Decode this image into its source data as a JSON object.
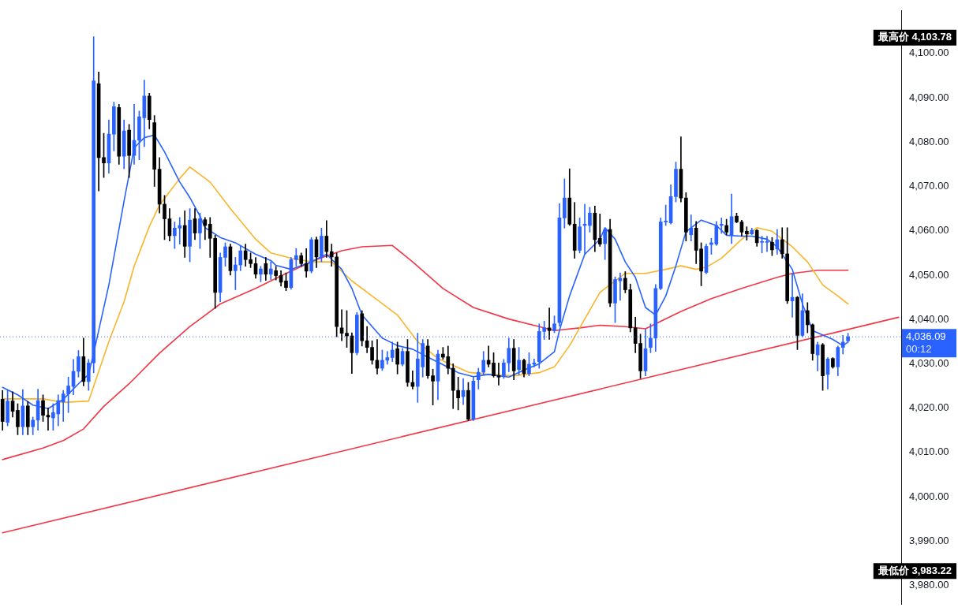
{
  "chart_data": {
    "type": "candlestick",
    "categories": [
      null,
      null,
      null,
      null,
      null,
      null,
      null,
      null,
      null,
      null,
      null,
      null,
      null,
      null,
      null,
      null,
      null,
      null,
      null,
      null,
      null,
      null,
      null,
      null,
      null,
      null,
      null,
      null,
      null,
      null,
      null,
      null,
      null,
      null,
      null,
      null,
      null,
      null,
      null,
      null,
      null,
      null,
      null,
      null,
      null,
      null,
      null,
      null,
      null,
      null,
      null,
      null,
      null,
      null,
      null,
      null,
      null,
      null,
      null,
      null,
      null,
      null,
      null,
      null,
      null,
      null,
      null,
      null,
      null,
      null,
      null,
      null,
      null,
      null,
      null,
      null,
      null,
      null,
      null,
      null,
      null,
      null,
      null,
      null,
      null,
      null,
      null,
      null,
      null,
      null,
      null,
      null,
      null,
      null,
      null,
      null,
      null,
      null,
      null,
      null,
      null,
      null,
      null,
      null,
      null,
      null,
      null,
      null,
      null,
      null,
      null,
      null,
      null,
      null,
      null,
      null,
      null,
      null,
      null,
      null,
      null,
      null,
      null,
      null,
      null,
      null,
      null,
      null,
      null,
      null,
      null,
      null,
      null,
      null,
      null,
      null,
      null,
      null,
      null,
      null,
      null,
      null,
      null,
      null,
      null,
      null,
      null,
      null,
      null,
      null,
      null,
      null,
      null,
      null,
      null,
      null,
      null,
      null,
      null,
      null,
      null,
      null,
      null,
      null,
      null,
      null,
      null,
      null,
      null,
      null,
      null,
      null,
      null,
      null,
      null,
      null,
      null,
      null
    ],
    "ohlc": [
      [
        4022,
        4024,
        4015,
        4017
      ],
      [
        4016.8,
        4024,
        4016,
        4021.6
      ],
      [
        4021.6,
        4023.7,
        4018,
        4019.3
      ],
      [
        4019.5,
        4021,
        4014,
        4015.8
      ],
      [
        4015.8,
        4024.2,
        4014,
        4020.5
      ],
      [
        4020.5,
        4021.5,
        4014,
        4015.8
      ],
      [
        4015.8,
        4018,
        4014,
        4017.3
      ],
      [
        4017.3,
        4024.3,
        4015,
        4021.7
      ],
      [
        4021.7,
        4023,
        4017,
        4018.4
      ],
      [
        4018.4,
        4020,
        4015,
        4018
      ],
      [
        4017.8,
        4021,
        4015,
        4019
      ],
      [
        4018.7,
        4023,
        4016,
        4021.7
      ],
      [
        4021.4,
        4024,
        4017,
        4023.2
      ],
      [
        4023.2,
        4027,
        4019,
        4025
      ],
      [
        4024.9,
        4031,
        4023,
        4028.3
      ],
      [
        4028.3,
        4033,
        4027,
        4031.6
      ],
      [
        4031.6,
        4035.8,
        4025,
        4026
      ],
      [
        4026,
        4031,
        4024,
        4030.2
      ],
      [
        4030.2,
        4103.78,
        4028,
        4093.8
      ],
      [
        4093.2,
        4095.8,
        4069,
        4076.5
      ],
      [
        4076.5,
        4082,
        4072,
        4075.3
      ],
      [
        4075.3,
        4085,
        4073,
        4081.8
      ],
      [
        4081.8,
        4089,
        4078,
        4088
      ],
      [
        4087.8,
        4088.5,
        4075,
        4076.8
      ],
      [
        4076.8,
        4085,
        4074,
        4082.5
      ],
      [
        4082.7,
        4084,
        4072,
        4077
      ],
      [
        4077,
        4088.5,
        4075,
        4080.4
      ],
      [
        4080.4,
        4087,
        4076,
        4085.7
      ],
      [
        4085.5,
        4094,
        4079,
        4090.4
      ],
      [
        4090.4,
        4091,
        4083,
        4085.1
      ],
      [
        4084.4,
        4086,
        4070,
        4073.9
      ],
      [
        4073.9,
        4076.5,
        4064,
        4066
      ],
      [
        4066,
        4068,
        4058,
        4062.7
      ],
      [
        4062.7,
        4065,
        4057.7,
        4058.9
      ],
      [
        4058.9,
        4062,
        4056,
        4060.6
      ],
      [
        4060.6,
        4063,
        4057,
        4061.2
      ],
      [
        4061.2,
        4064.5,
        4054,
        4056.5
      ],
      [
        4056.5,
        4065,
        4053,
        4062.4
      ],
      [
        4062.7,
        4065,
        4058,
        4059.5
      ],
      [
        4059.5,
        4064,
        4056,
        4062.7
      ],
      [
        4062.5,
        4063,
        4058,
        4061.2
      ],
      [
        4061.5,
        4063,
        4054,
        4058.3
      ],
      [
        4058.3,
        4059,
        4042.5,
        4046.1
      ],
      [
        4046.1,
        4055,
        4044,
        4054
      ],
      [
        4054,
        4057.3,
        4052,
        4056.4
      ],
      [
        4056.4,
        4057,
        4050,
        4051
      ],
      [
        4051,
        4054,
        4046.7,
        4052.3
      ],
      [
        4052.3,
        4056.7,
        4051,
        4055.5
      ],
      [
        4055.5,
        4057,
        4052,
        4053.5
      ],
      [
        4053.5,
        4055,
        4051.7,
        4052.6
      ],
      [
        4052.6,
        4054,
        4049.3,
        4050.2
      ],
      [
        4050.2,
        4052,
        4048.5,
        4051.4
      ],
      [
        4052.6,
        4054,
        4048.8,
        4050.2
      ],
      [
        4050.2,
        4053,
        4049,
        4051.4
      ],
      [
        4051,
        4052,
        4048.9,
        4049.9
      ],
      [
        4049.9,
        4051,
        4047.5,
        4048.4
      ],
      [
        4048.7,
        4050.5,
        4046.5,
        4047.2
      ],
      [
        4047.2,
        4054,
        4046.8,
        4053.5
      ],
      [
        4053.5,
        4056,
        4052,
        4054.4
      ],
      [
        4054.4,
        4055,
        4052,
        4052.6
      ],
      [
        4052.6,
        4056,
        4049.5,
        4050.9
      ],
      [
        4050.9,
        4058.5,
        4050.5,
        4058
      ],
      [
        4058,
        4058.6,
        4051.7,
        4054.1
      ],
      [
        4054.1,
        4060.6,
        4053,
        4058.8
      ],
      [
        4058.8,
        4062.3,
        4054,
        4055.3
      ],
      [
        4055.3,
        4057,
        4052,
        4054.1
      ],
      [
        4054.1,
        4055,
        4036.1,
        4038.4
      ],
      [
        4038.1,
        4042.2,
        4035.2,
        4036.9
      ],
      [
        4036.9,
        4042,
        4033.7,
        4036.3
      ],
      [
        4036.3,
        4037,
        4027.8,
        4032.5
      ],
      [
        4032.5,
        4041.6,
        4032,
        4041
      ],
      [
        4041.3,
        4042,
        4034,
        4035.2
      ],
      [
        4035.2,
        4038.4,
        4032.5,
        4033.7
      ],
      [
        4033.7,
        4035.2,
        4029.9,
        4030.8
      ],
      [
        4030.8,
        4035.5,
        4027.7,
        4029
      ],
      [
        4029,
        4033.1,
        4028.5,
        4030.8
      ],
      [
        4030.8,
        4032.8,
        4029.9,
        4031.4
      ],
      [
        4031.4,
        4034.9,
        4030.5,
        4033.1
      ],
      [
        4033.4,
        4034.9,
        4027.7,
        4029.9
      ],
      [
        4029.9,
        4033.5,
        4029.5,
        4032.8
      ],
      [
        4032.8,
        4035.5,
        4024.9,
        4025.8
      ],
      [
        4025.8,
        4028.4,
        4024.3,
        4024.9
      ],
      [
        4024.9,
        4036.9,
        4021.3,
        4031.1
      ],
      [
        4029.3,
        4035.5,
        4027,
        4034.6
      ],
      [
        4034,
        4035.5,
        4026.7,
        4027.3
      ],
      [
        4027.3,
        4028.8,
        4020.7,
        4026.1
      ],
      [
        4026.1,
        4033.1,
        4021.9,
        4032.2
      ],
      [
        4032.2,
        4033.7,
        4031,
        4031.5
      ],
      [
        4031.6,
        4034,
        4027.7,
        4029
      ],
      [
        4029,
        4030,
        4019.9,
        4024
      ],
      [
        4024,
        4027,
        4019.6,
        4022.3
      ],
      [
        4022.6,
        4026.7,
        4020.8,
        4024
      ],
      [
        4024,
        4025.8,
        4017.2,
        4017.5
      ],
      [
        4017.5,
        4027,
        4017.2,
        4026.1
      ],
      [
        4026.4,
        4029,
        4024.3,
        4028.1
      ],
      [
        4028.1,
        4032.8,
        4027.5,
        4030.8
      ],
      [
        4030.8,
        4034,
        4029.3,
        4029.9
      ],
      [
        4030.2,
        4032.5,
        4027,
        4027.3
      ],
      [
        4027.3,
        4030.2,
        4025.2,
        4027
      ],
      [
        4027.3,
        4031,
        4026.7,
        4030.2
      ],
      [
        4030.2,
        4035.8,
        4028.2,
        4033.5
      ],
      [
        4033.5,
        4035.5,
        4026.4,
        4028.4
      ],
      [
        4028.7,
        4033.7,
        4027.5,
        4030.8
      ],
      [
        4030.8,
        4031.1,
        4027,
        4027.8
      ],
      [
        4027.8,
        4032.5,
        4027.3,
        4029.9
      ],
      [
        4029.9,
        4031.1,
        4029.3,
        4030.2
      ],
      [
        4030.5,
        4039,
        4029,
        4037.3
      ],
      [
        4037.3,
        4039.6,
        4035.5,
        4038.1
      ],
      [
        4038.1,
        4042.6,
        4035.5,
        4037.5
      ],
      [
        4037.5,
        4040.8,
        4037,
        4039
      ],
      [
        4039.3,
        4066.1,
        4038.5,
        4062.9
      ],
      [
        4062.9,
        4071.7,
        4060.6,
        4067.4
      ],
      [
        4067.4,
        4074,
        4061.2,
        4061.5
      ],
      [
        4061.5,
        4066.4,
        4053.8,
        4055.6
      ],
      [
        4055.6,
        4062.9,
        4055,
        4060.9
      ],
      [
        4061.2,
        4066,
        4054.7,
        4061.5
      ],
      [
        4061.2,
        4065.3,
        4059.7,
        4064
      ],
      [
        4064,
        4065.6,
        4055.3,
        4058
      ],
      [
        4058.3,
        4063.8,
        4056.5,
        4057
      ],
      [
        4057.1,
        4060.6,
        4053.5,
        4060.3
      ],
      [
        4060.3,
        4062.6,
        4042.9,
        4043.7
      ],
      [
        4043.7,
        4049.6,
        4039.3,
        4049
      ],
      [
        4048.7,
        4050.5,
        4044.3,
        4049.3
      ],
      [
        4049.3,
        4050.8,
        4046,
        4046.7
      ],
      [
        4046.7,
        4048,
        4037.2,
        4038.1
      ],
      [
        4038.1,
        4040.5,
        4032.5,
        4034.6
      ],
      [
        4034.6,
        4036.7,
        4026.7,
        4028.4
      ],
      [
        4028.4,
        4037.8,
        4027.3,
        4033.4
      ],
      [
        4033.7,
        4039,
        4032.5,
        4035.8
      ],
      [
        4035.8,
        4047.9,
        4032.8,
        4047
      ],
      [
        4047,
        4062.9,
        4046.7,
        4062
      ],
      [
        4062,
        4065.8,
        4061.2,
        4062.2
      ],
      [
        4061.8,
        4070.4,
        4061.5,
        4067.7
      ],
      [
        4067.7,
        4075.5,
        4066.5,
        4073.9
      ],
      [
        4073.9,
        4081.2,
        4066.5,
        4067.4
      ],
      [
        4067.4,
        4068.6,
        4057.7,
        4059.7
      ],
      [
        4059.1,
        4063.6,
        4057.7,
        4060.6
      ],
      [
        4060.6,
        4062.1,
        4052.6,
        4055.6
      ],
      [
        4055.9,
        4057.3,
        4047.6,
        4050.9
      ],
      [
        4050.6,
        4057,
        4050.3,
        4056.5
      ],
      [
        4056.9,
        4058.3,
        4054.7,
        4057.3
      ],
      [
        4057,
        4062.1,
        4056.7,
        4061.2
      ],
      [
        4061.2,
        4062.9,
        4059.4,
        4061.5
      ],
      [
        4061.2,
        4062.6,
        4059.1,
        4059.7
      ],
      [
        4059.1,
        4068.3,
        4057.1,
        4063.2
      ],
      [
        4063.3,
        4064,
        4061.8,
        4062
      ],
      [
        4062,
        4062.4,
        4058.8,
        4059.7
      ],
      [
        4059.9,
        4060.9,
        4057.9,
        4059.3
      ],
      [
        4059.3,
        4060.6,
        4059.1,
        4060.1
      ],
      [
        4060.1,
        4060.3,
        4056.5,
        4057.3
      ],
      [
        4057.4,
        4058.8,
        4055,
        4057.6
      ],
      [
        4057.4,
        4058.8,
        4055.3,
        4057.5
      ],
      [
        4057.4,
        4058.5,
        4054.4,
        4055.7
      ],
      [
        4055.9,
        4060.3,
        4054.7,
        4058
      ],
      [
        4058,
        4060.7,
        4053.8,
        4054.8
      ],
      [
        4054.8,
        4060.7,
        4043.6,
        4044.2
      ],
      [
        4044.2,
        4050.3,
        4040.5,
        4045
      ],
      [
        4045,
        4045.2,
        4033.2,
        4036.4
      ],
      [
        4036.4,
        4045.8,
        4036.1,
        4042
      ],
      [
        4042,
        4043.8,
        4037,
        4038.8
      ],
      [
        4038.8,
        4039,
        4030.8,
        4032.3
      ],
      [
        4032,
        4034.9,
        4028.4,
        4034.3
      ],
      [
        4034.3,
        4034.6,
        4024,
        4027.3
      ],
      [
        4027.6,
        4031.4,
        4024.3,
        4031.1
      ],
      [
        4031.2,
        4031.4,
        4029,
        4029.3
      ],
      [
        4029.3,
        4034,
        4027.3,
        4033.7
      ],
      [
        4033.7,
        4036.4,
        4032.2,
        4034.9
      ],
      [
        4035.2,
        4036.9,
        4034.9,
        4036.09
      ],
      null,
      null,
      null,
      null,
      null,
      null,
      null,
      null,
      null,
      null
    ],
    "colors": [
      "#000000",
      "#2962ff",
      "#000000",
      "#000000",
      "#2962ff",
      "#000000",
      "#2962ff",
      "#2962ff",
      "#000000",
      "#000000",
      "#2962ff",
      "#2962ff",
      "#2962ff",
      "#2962ff",
      "#2962ff",
      "#2962ff",
      "#000000",
      "#2962ff",
      "#2962ff",
      "#000000",
      "#000000",
      "#2962ff",
      "#2962ff",
      "#000000",
      "#2962ff",
      "#000000",
      "#2962ff",
      "#2962ff",
      "#2962ff",
      "#000000",
      "#000000",
      "#000000",
      "#000000",
      "#000000",
      "#2962ff",
      "#2962ff",
      "#000000",
      "#2962ff",
      "#000000",
      "#2962ff",
      "#000000",
      "#000000",
      "#000000",
      "#2962ff",
      "#2962ff",
      "#000000",
      "#2962ff",
      "#2962ff",
      "#000000",
      "#000000",
      "#000000",
      "#2962ff",
      "#000000",
      "#2962ff",
      "#000000",
      "#000000",
      "#000000",
      "#2962ff",
      "#2962ff",
      "#000000",
      "#000000",
      "#2962ff",
      "#000000",
      "#2962ff",
      "#000000",
      "#000000",
      "#000000",
      "#000000",
      "#000000",
      "#000000",
      "#2962ff",
      "#000000",
      "#000000",
      "#000000",
      "#000000",
      "#2962ff",
      "#2962ff",
      "#2962ff",
      "#000000",
      "#2962ff",
      "#000000",
      "#000000",
      "#2962ff",
      "#2962ff",
      "#000000",
      "#000000",
      "#2962ff",
      "#000000",
      "#000000",
      "#000000",
      "#000000",
      "#2962ff",
      "#000000",
      "#2962ff",
      "#2962ff",
      "#2962ff",
      "#000000",
      "#000000",
      "#000000",
      "#2962ff",
      "#2962ff",
      "#000000",
      "#2962ff",
      "#000000",
      "#2962ff",
      "#2962ff",
      "#2962ff",
      "#2962ff",
      "#000000",
      "#2962ff",
      "#2962ff",
      "#2962ff",
      "#000000",
      "#000000",
      "#2962ff",
      "#2962ff",
      "#2962ff",
      "#000000",
      "#000000",
      "#2962ff",
      "#000000",
      "#2962ff",
      "#2962ff",
      "#000000",
      "#000000",
      "#000000",
      "#000000",
      "#2962ff",
      "#2962ff",
      "#2962ff",
      "#2962ff",
      "#2962ff",
      "#2962ff",
      "#2962ff",
      "#000000",
      "#000000",
      "#2962ff",
      "#000000",
      "#000000",
      "#2962ff",
      "#2962ff",
      "#2962ff",
      "#2962ff",
      "#000000",
      "#2962ff",
      "#000000",
      "#000000",
      "#000000",
      "#2962ff",
      "#000000",
      "#2962ff",
      "#2962ff",
      "#000000",
      "#2962ff",
      "#000000",
      "#000000",
      "#2962ff",
      "#000000",
      "#2962ff",
      "#000000",
      "#000000",
      "#2962ff",
      "#000000",
      "#2962ff",
      "#000000",
      "#2962ff",
      "#2962ff",
      "#2962ff",
      null,
      null,
      null,
      null,
      null,
      null,
      null,
      null,
      null,
      null
    ],
    "series": [
      {
        "type": "line",
        "color": "#2962ff",
        "values": [
          4024.7,
          null,
          null,
          4023,
          null,
          null,
          4020.7,
          null,
          null,
          4019.9,
          null,
          null,
          4022,
          null,
          null,
          4025.5,
          null,
          4027.6,
          4032.4,
          null,
          null,
          4047.8,
          null,
          null,
          4066.7,
          null,
          4078.7,
          null,
          4081,
          null,
          4081.6,
          null,
          4077.8,
          null,
          null,
          4071,
          null,
          4067.5,
          null,
          4063.3,
          4060.7,
          null,
          null,
          4058.5,
          null,
          null,
          4057.3,
          null,
          null,
          null,
          4054.7,
          null,
          null,
          4053.3,
          4052.2,
          null,
          null,
          4051.3,
          null,
          null,
          null,
          4053,
          null,
          null,
          4054.7,
          null,
          null,
          4051.3,
          null,
          4047,
          null,
          4041,
          null,
          null,
          null,
          4035.8,
          null,
          null,
          4034.1,
          null,
          null,
          4033.3,
          null,
          null,
          4031.5,
          null,
          null,
          4029.8,
          null,
          null,
          4028,
          null,
          null,
          4027.1,
          null,
          null,
          4027.6,
          null,
          null,
          null,
          4027,
          null,
          null,
          4028.6,
          null,
          null,
          4030,
          null,
          null,
          4032.7,
          4037.5,
          null,
          4045.3,
          null,
          null,
          4054.7,
          null,
          null,
          4058.1,
          4060.7,
          null,
          4058.1,
          null,
          4053,
          null,
          4049.5,
          null,
          4042.7,
          null,
          4041,
          null,
          4045.3,
          null,
          4052.1,
          null,
          4059.8,
          null,
          null,
          4062.4,
          null,
          null,
          4061.2,
          null,
          4059,
          null,
          null,
          4058.8,
          null,
          4058.8,
          null,
          null,
          4058.1,
          null,
          4056.4,
          null,
          null,
          4051.3,
          null,
          4043.5,
          null,
          4037.5,
          null,
          null,
          null,
          4035.5,
          null,
          4034.1,
          4034.9,
          null,
          null,
          null,
          null,
          null,
          null,
          null,
          null,
          null,
          null
        ]
      },
      {
        "type": "line",
        "color": "#f9b52a",
        "values": [
          4022.1,
          null,
          null,
          null,
          null,
          null,
          null,
          null,
          4022.1,
          null,
          null,
          null,
          4021.3,
          null,
          null,
          null,
          null,
          4021.6,
          null,
          null,
          null,
          4035,
          null,
          null,
          4044,
          null,
          4052,
          null,
          null,
          4061,
          null,
          4065.8,
          null,
          null,
          null,
          4071.8,
          null,
          4074.4,
          null,
          4072.7,
          null,
          4071,
          null,
          null,
          null,
          4065,
          null,
          null,
          null,
          null,
          4058.1,
          null,
          null,
          4055,
          null,
          null,
          null,
          4053.8,
          null,
          null,
          null,
          4053,
          null,
          null,
          null,
          4053,
          null,
          null,
          null,
          4048.7,
          null,
          null,
          null,
          4045.3,
          null,
          null,
          null,
          null,
          4041,
          null,
          null,
          null,
          4035,
          null,
          null,
          null,
          4031.2,
          null,
          null,
          null,
          null,
          null,
          4028.1,
          null,
          null,
          null,
          4027.6,
          null,
          null,
          null,
          null,
          4027.3,
          null,
          null,
          null,
          null,
          4028,
          null,
          null,
          4029.3,
          null,
          null,
          4034.1,
          null,
          null,
          4040.1,
          null,
          null,
          4046.1,
          null,
          null,
          null,
          null,
          4050.4,
          null,
          null,
          null,
          4050.4,
          null,
          null,
          null,
          4051.3,
          null,
          null,
          4052.1,
          null,
          null,
          4051.3,
          null,
          4051.8,
          null,
          null,
          4053.8,
          null,
          null,
          null,
          4058.1,
          null,
          null,
          4060.7,
          null,
          null,
          4059.9,
          null,
          null,
          null,
          4056.4,
          null,
          null,
          4053,
          null,
          null,
          4047.8,
          null,
          null,
          4045.3,
          null,
          4043.5,
          null,
          null,
          null,
          null,
          null,
          null,
          null,
          null,
          null,
          null
        ]
      },
      {
        "type": "line",
        "color": "#f23645",
        "values": [
          4008.4,
          null,
          null,
          null,
          null,
          null,
          null,
          null,
          4011,
          null,
          null,
          null,
          4012.7,
          null,
          null,
          null,
          4015.3,
          null,
          null,
          null,
          4020.4,
          null,
          null,
          null,
          null,
          4025.5,
          null,
          null,
          null,
          null,
          null,
          4032.4,
          null,
          null,
          null,
          null,
          null,
          4038.4,
          null,
          null,
          null,
          null,
          null,
          4043.5,
          null,
          null,
          null,
          null,
          null,
          null,
          4047,
          null,
          null,
          null,
          null,
          null,
          4050.4,
          null,
          null,
          null,
          null,
          null,
          4053.5,
          null,
          null,
          null,
          null,
          4055.5,
          null,
          null,
          null,
          4056.4,
          null,
          null,
          null,
          null,
          null,
          4056.7,
          null,
          null,
          null,
          4053,
          null,
          null,
          null,
          null,
          null,
          4047,
          null,
          null,
          null,
          null,
          null,
          4042.7,
          null,
          null,
          null,
          null,
          null,
          null,
          4040.1,
          null,
          null,
          null,
          null,
          null,
          4038.4,
          null,
          null,
          4037.5,
          null,
          null,
          null,
          null,
          4038.1,
          null,
          null,
          null,
          4038.7,
          null,
          null,
          null,
          null,
          4038.4,
          null,
          null,
          null,
          4037.9,
          null,
          null,
          4039.6,
          null,
          null,
          null,
          4041.8,
          null,
          null,
          null,
          null,
          null,
          4044.7,
          null,
          null,
          null,
          null,
          null,
          4047,
          null,
          null,
          null,
          null,
          null,
          null,
          4049.5,
          null,
          null,
          4050.4,
          null,
          null,
          null,
          null,
          4051.1,
          null,
          null,
          null,
          null,
          null,
          4051.1,
          null,
          null,
          null,
          null,
          null,
          null,
          null,
          null,
          null,
          null
        ]
      },
      {
        "type": "line",
        "color": "#f23645",
        "values": [
          3991.9,
          null,
          null,
          null,
          null,
          null,
          null,
          null,
          null,
          null,
          null,
          null,
          null,
          null,
          null,
          null,
          null,
          null,
          null,
          null,
          null,
          null,
          null,
          null,
          null,
          null,
          null,
          null,
          null,
          null,
          null,
          null,
          null,
          null,
          null,
          null,
          null,
          null,
          null,
          null,
          null,
          null,
          null,
          null,
          null,
          null,
          null,
          null,
          null,
          null,
          null,
          null,
          null,
          null,
          null,
          null,
          null,
          null,
          null,
          null,
          null,
          null,
          null,
          null,
          null,
          null,
          null,
          null,
          null,
          null,
          null,
          null,
          null,
          null,
          null,
          null,
          null,
          null,
          null,
          null,
          null,
          null,
          null,
          null,
          null,
          null,
          null,
          null,
          null,
          null,
          null,
          null,
          null,
          null,
          null,
          null,
          null,
          null,
          null,
          null,
          null,
          null,
          null,
          null,
          null,
          null,
          null,
          null,
          null,
          null,
          null,
          null,
          null,
          null,
          null,
          null,
          null,
          null,
          null,
          null,
          null,
          null,
          null,
          null,
          null,
          null,
          null,
          null,
          null,
          null,
          null,
          null,
          null,
          null,
          null,
          null,
          null,
          null,
          null,
          null,
          null,
          null,
          null,
          null,
          null,
          null,
          null,
          null,
          null,
          null,
          null,
          null,
          null,
          null,
          null,
          null,
          null,
          null,
          null,
          null,
          null,
          null,
          null,
          null,
          null,
          null,
          null,
          null,
          null,
          null,
          null,
          null,
          null,
          null,
          null,
          null,
          null,
          4040.5
        ]
      }
    ],
    "ylim": [
      3975.8,
      4109.6
    ],
    "yticks": [
      {
        "value": 3980,
        "label": "3,980.00"
      },
      {
        "value": 3990,
        "label": "3,990.00"
      },
      {
        "value": 4000,
        "label": "4,000.00"
      },
      {
        "value": 4010,
        "label": "4,010.00"
      },
      {
        "value": 4020,
        "label": "4,020.00"
      },
      {
        "value": 4030,
        "label": "4,030.00"
      },
      {
        "value": 4040,
        "label": "4,040.00"
      },
      {
        "value": 4050,
        "label": "4,050.00"
      },
      {
        "value": 4060,
        "label": "4,060.00"
      },
      {
        "value": 4070,
        "label": "4,070.00"
      },
      {
        "value": 4080,
        "label": "4,080.00"
      },
      {
        "value": 4090,
        "label": "4,090.00"
      },
      {
        "value": 4100,
        "label": "4,100.00"
      }
    ],
    "ref_lines": [
      {
        "axis": "y",
        "value": 4036.09,
        "label": "4,036.09",
        "color": "#2962ff",
        "line_style": "dotted"
      }
    ],
    "annotations": [
      "最高价 4,103.78",
      "最低价 3,983.22",
      "00:12"
    ],
    "grid": false,
    "marker": "none",
    "line_style": "solid",
    "tick_labels": "y"
  }
}
